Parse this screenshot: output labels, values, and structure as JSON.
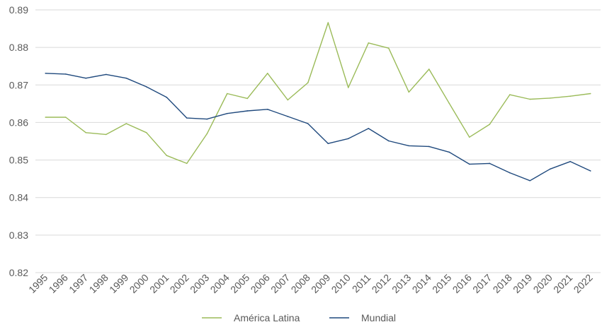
{
  "chart_data": {
    "type": "line",
    "title": "",
    "xlabel": "",
    "ylabel": "",
    "x": [
      "1995",
      "1996",
      "1997",
      "1998",
      "1999",
      "2000",
      "2001",
      "2002",
      "2003",
      "2004",
      "2005",
      "2006",
      "2007",
      "2008",
      "2009",
      "2010",
      "2011",
      "2012",
      "2013",
      "2014",
      "2015",
      "2016",
      "2017",
      "2018",
      "2019",
      "2020",
      "2021",
      "2022"
    ],
    "ylim": [
      0.82,
      0.89
    ],
    "yticks": [
      "0.82",
      "0.83",
      "0.84",
      "0.85",
      "0.86",
      "0.87",
      "0.88",
      "0.89"
    ],
    "grid": true,
    "legend_position": "bottom",
    "series": [
      {
        "name": "América Latina",
        "color": "#9bbb59",
        "values": [
          0.8614,
          0.8614,
          0.8573,
          0.8568,
          0.8597,
          0.8573,
          0.8512,
          0.8491,
          0.857,
          0.8677,
          0.8664,
          0.8731,
          0.866,
          0.8706,
          0.8866,
          0.8693,
          0.8812,
          0.8798,
          0.8681,
          0.8742,
          0.8651,
          0.8561,
          0.8595,
          0.8674,
          0.8662,
          0.8665,
          0.867,
          0.8677
        ]
      },
      {
        "name": "Mundial",
        "color": "#1f497d",
        "values": [
          0.8731,
          0.8729,
          0.8718,
          0.8728,
          0.8718,
          0.8695,
          0.8667,
          0.8612,
          0.8609,
          0.8624,
          0.8631,
          0.8635,
          0.8616,
          0.8597,
          0.8544,
          0.8557,
          0.8584,
          0.8551,
          0.8538,
          0.8536,
          0.8521,
          0.8489,
          0.8491,
          0.8466,
          0.8445,
          0.8476,
          0.8496,
          0.8471
        ]
      }
    ]
  }
}
